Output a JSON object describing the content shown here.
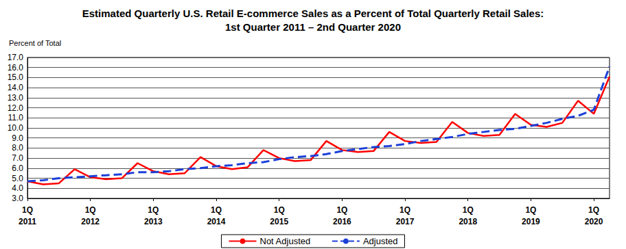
{
  "chart_data": {
    "type": "line",
    "title": "Estimated Quarterly U.S. Retail E-commerce Sales as a Percent of Total Quarterly Retail Sales:\n1st Quarter 2011 – 2nd Quarter 2020",
    "y_label": "Percent of Total",
    "categories": [
      "1Q\n2011",
      null,
      null,
      null,
      "1Q\n2012",
      null,
      null,
      null,
      "1Q\n2013",
      null,
      null,
      null,
      "1Q\n2014",
      null,
      null,
      null,
      "1Q\n2015",
      null,
      null,
      null,
      "1Q\n2016",
      null,
      null,
      null,
      "1Q\n2017",
      null,
      null,
      null,
      "1Q\n2018",
      null,
      null,
      null,
      "1Q\n2019",
      null,
      null,
      null,
      "1Q\n2020",
      null
    ],
    "series": [
      {
        "name": "Not Adjusted",
        "color": "#ff0000",
        "line_style": "solid",
        "values": [
          4.7,
          4.4,
          4.5,
          5.9,
          5.1,
          4.9,
          5.0,
          6.5,
          5.7,
          5.4,
          5.5,
          7.1,
          6.2,
          5.9,
          6.1,
          7.8,
          7.0,
          6.7,
          6.8,
          8.7,
          7.8,
          7.6,
          7.7,
          9.6,
          8.7,
          8.5,
          8.6,
          10.6,
          9.5,
          9.2,
          9.3,
          11.4,
          10.3,
          10.1,
          10.5,
          12.7,
          11.4,
          15.1
        ]
      },
      {
        "name": "Adjusted",
        "color": "#1c3fd8",
        "line_style": "dashed",
        "values": [
          4.7,
          4.8,
          5.0,
          5.1,
          5.2,
          5.3,
          5.4,
          5.6,
          5.6,
          5.7,
          5.9,
          6.0,
          6.2,
          6.3,
          6.5,
          6.6,
          6.9,
          7.1,
          7.2,
          7.4,
          7.7,
          7.9,
          8.1,
          8.2,
          8.4,
          8.7,
          8.9,
          9.1,
          9.4,
          9.6,
          9.8,
          9.9,
          10.2,
          10.5,
          10.9,
          11.2,
          11.8,
          16.1
        ]
      }
    ],
    "ylim": [
      3,
      17
    ],
    "yticks": [
      {
        "value": 3,
        "label": "3.0"
      },
      {
        "value": 4,
        "label": "4.0"
      },
      {
        "value": 5,
        "label": "5.0"
      },
      {
        "value": 6,
        "label": "6.0"
      },
      {
        "value": 7,
        "label": "7.0"
      },
      {
        "value": 8,
        "label": "8.0"
      },
      {
        "value": 9,
        "label": "9.0"
      },
      {
        "value": 10,
        "label": "10.0"
      },
      {
        "value": 11,
        "label": "11.0"
      },
      {
        "value": 12,
        "label": "12.0"
      },
      {
        "value": 13,
        "label": "13.0"
      },
      {
        "value": 14,
        "label": "14.0"
      },
      {
        "value": 15,
        "label": "15.0"
      },
      {
        "value": 16,
        "label": "16.0"
      },
      {
        "value": 17,
        "label": "17.0"
      }
    ],
    "grid": true,
    "legend": "bottom"
  }
}
